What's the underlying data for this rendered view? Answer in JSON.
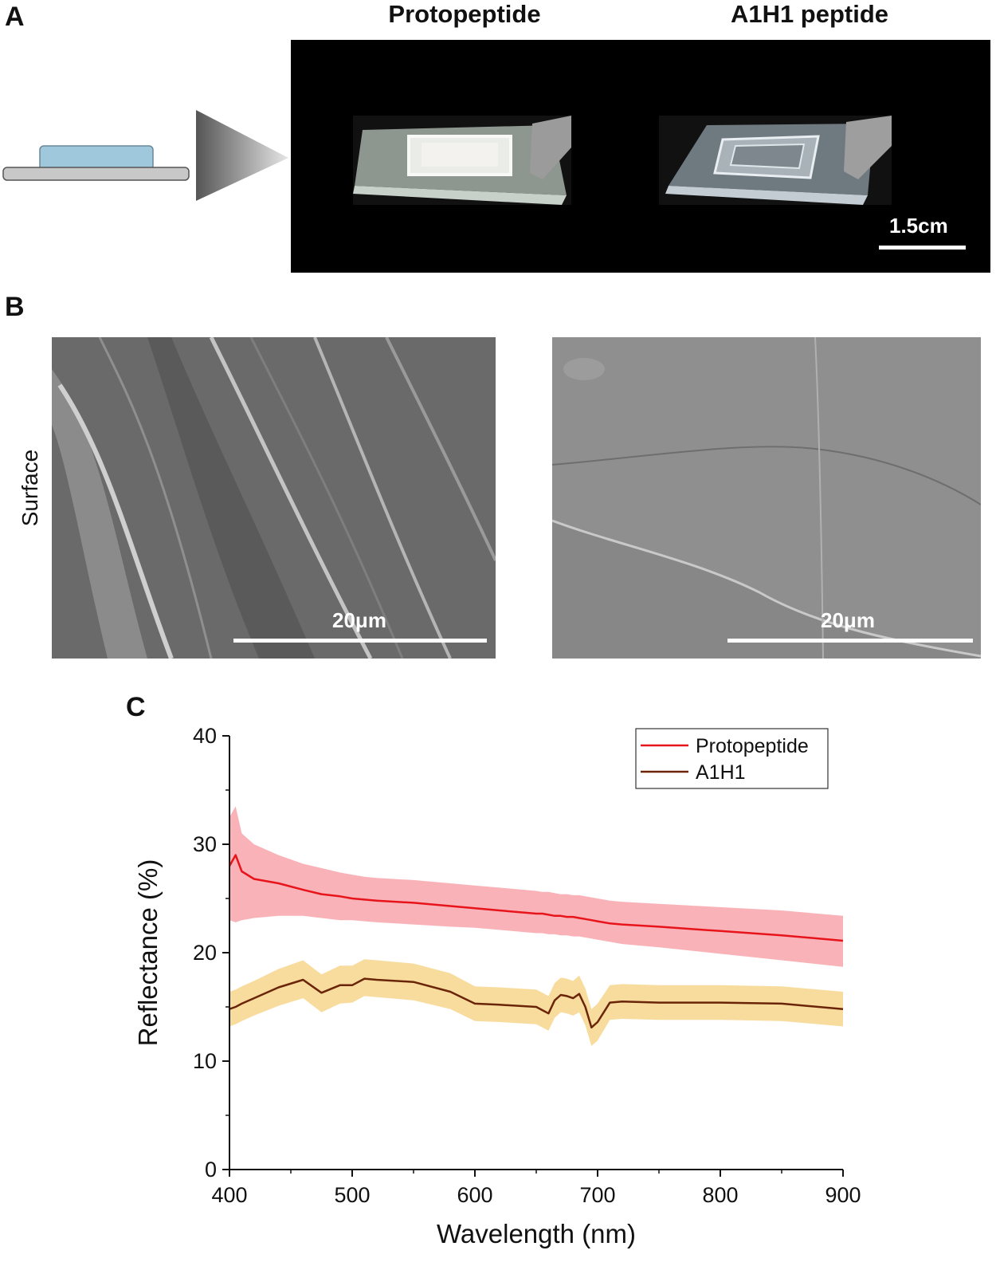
{
  "panels": {
    "a_label": "A",
    "b_label": "B",
    "c_label": "C"
  },
  "panel_a": {
    "title_left": "Protopeptide",
    "title_right": "A1H1 peptide",
    "scale_label": "1.5cm"
  },
  "panel_b": {
    "row_label": "Surface",
    "scale_left": "20μm",
    "scale_right": "20μm"
  },
  "colors": {
    "protopeptide_line": "#e8141b",
    "protopeptide_band": "#f9b3b8",
    "a1h1_line": "#6a2508",
    "a1h1_band": "#f8dc9d"
  },
  "chart_data": {
    "type": "line",
    "xlabel": "Wavelength (nm)",
    "ylabel": "Reflectance (%)",
    "xlim": [
      400,
      900
    ],
    "ylim": [
      0,
      40
    ],
    "x_ticks": [
      "400",
      "500",
      "600",
      "700",
      "800",
      "900"
    ],
    "y_ticks": [
      "0",
      "10",
      "20",
      "30",
      "40"
    ],
    "legend_position": "top-right",
    "x": [
      400,
      405,
      410,
      420,
      440,
      460,
      475,
      490,
      500,
      510,
      520,
      550,
      580,
      600,
      620,
      650,
      655,
      660,
      665,
      670,
      675,
      680,
      685,
      690,
      695,
      700,
      710,
      720,
      750,
      800,
      850,
      900
    ],
    "series": [
      {
        "name": "Protopeptide",
        "values": [
          28.0,
          29.0,
          27.5,
          26.8,
          26.4,
          25.8,
          25.4,
          25.2,
          25.0,
          24.9,
          24.8,
          24.6,
          24.3,
          24.1,
          23.9,
          23.6,
          23.6,
          23.5,
          23.4,
          23.4,
          23.3,
          23.3,
          23.2,
          23.1,
          23.0,
          22.9,
          22.7,
          22.6,
          22.4,
          22.0,
          21.6,
          21.1
        ],
        "lower": [
          23.0,
          22.8,
          23.0,
          23.2,
          23.4,
          23.4,
          23.2,
          23.0,
          23.0,
          22.9,
          22.8,
          22.6,
          22.4,
          22.3,
          22.1,
          21.8,
          21.8,
          21.7,
          21.7,
          21.6,
          21.6,
          21.5,
          21.5,
          21.4,
          21.3,
          21.2,
          21.0,
          20.8,
          20.5,
          19.9,
          19.3,
          18.7
        ],
        "upper": [
          32.5,
          33.5,
          31.0,
          30.0,
          29.0,
          28.2,
          27.8,
          27.4,
          27.2,
          27.0,
          26.9,
          26.7,
          26.4,
          26.2,
          26.0,
          25.7,
          25.6,
          25.6,
          25.5,
          25.4,
          25.4,
          25.3,
          25.3,
          25.2,
          25.1,
          25.0,
          24.8,
          24.7,
          24.5,
          24.2,
          23.9,
          23.4
        ]
      },
      {
        "name": "A1H1",
        "values": [
          14.8,
          15.0,
          15.3,
          15.8,
          16.8,
          17.5,
          16.3,
          17.0,
          17.0,
          17.6,
          17.5,
          17.3,
          16.4,
          15.3,
          15.2,
          15.0,
          14.7,
          14.4,
          15.6,
          16.1,
          16.0,
          15.8,
          16.2,
          15.0,
          13.1,
          13.6,
          15.4,
          15.5,
          15.4,
          15.4,
          15.3,
          14.8
        ],
        "lower": [
          13.2,
          13.4,
          13.7,
          14.2,
          15.1,
          15.8,
          14.5,
          15.3,
          15.4,
          16.0,
          15.9,
          15.6,
          14.8,
          13.7,
          13.6,
          13.4,
          13.1,
          12.8,
          14.0,
          14.5,
          14.4,
          14.2,
          14.5,
          13.3,
          11.4,
          11.9,
          13.8,
          13.9,
          13.8,
          13.8,
          13.7,
          13.2
        ],
        "upper": [
          16.4,
          16.6,
          16.9,
          17.4,
          18.5,
          19.3,
          18.0,
          18.8,
          18.8,
          19.4,
          19.3,
          19.0,
          18.1,
          16.9,
          16.8,
          16.6,
          16.3,
          16.0,
          17.2,
          17.7,
          17.6,
          17.4,
          17.9,
          16.7,
          14.8,
          15.3,
          17.0,
          17.1,
          17.0,
          17.0,
          16.9,
          16.4
        ]
      }
    ]
  }
}
